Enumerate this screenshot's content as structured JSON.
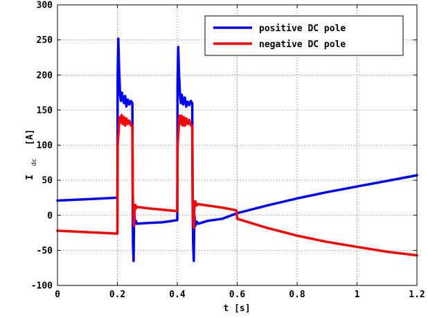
{
  "chart_data": {
    "type": "line",
    "xlabel": "t [s]",
    "ylabel_main": "I",
    "ylabel_sub": "dc",
    "ylabel_unit": "[A]",
    "xlim": [
      0,
      1.2
    ],
    "ylim": [
      -100,
      300
    ],
    "xticks": [
      0,
      0.2,
      0.4,
      0.6,
      0.8,
      1,
      1.2
    ],
    "xtick_labels": [
      "0",
      "0.2",
      "0.4",
      "0.6",
      "0.8",
      "1",
      "1.2"
    ],
    "yticks": [
      -100,
      -50,
      0,
      50,
      100,
      150,
      200,
      250,
      300
    ],
    "ytick_labels": [
      "-100",
      "-50",
      "0",
      "50",
      "100",
      "150",
      "200",
      "250",
      "300"
    ],
    "grid": true,
    "legend_position": "top-right",
    "series": [
      {
        "name": "positive DC pole",
        "color": "#0000ff",
        "points": [
          [
            0.0,
            21
          ],
          [
            0.1,
            23
          ],
          [
            0.198,
            25
          ],
          [
            0.2,
            25
          ],
          [
            0.201,
            200
          ],
          [
            0.203,
            252
          ],
          [
            0.206,
            205
          ],
          [
            0.209,
            172
          ],
          [
            0.212,
            163
          ],
          [
            0.215,
            175
          ],
          [
            0.218,
            168
          ],
          [
            0.222,
            160
          ],
          [
            0.226,
            170
          ],
          [
            0.23,
            155
          ],
          [
            0.235,
            165
          ],
          [
            0.24,
            158
          ],
          [
            0.245,
            163
          ],
          [
            0.25,
            160
          ],
          [
            0.251,
            30
          ],
          [
            0.252,
            -40
          ],
          [
            0.254,
            -65
          ],
          [
            0.256,
            5
          ],
          [
            0.259,
            -12
          ],
          [
            0.262,
            -8
          ],
          [
            0.265,
            -12
          ],
          [
            0.3,
            -11
          ],
          [
            0.35,
            -10
          ],
          [
            0.398,
            -7
          ],
          [
            0.4,
            -7
          ],
          [
            0.401,
            190
          ],
          [
            0.403,
            240
          ],
          [
            0.406,
            200
          ],
          [
            0.409,
            172
          ],
          [
            0.412,
            160
          ],
          [
            0.415,
            172
          ],
          [
            0.42,
            158
          ],
          [
            0.425,
            168
          ],
          [
            0.43,
            155
          ],
          [
            0.435,
            162
          ],
          [
            0.44,
            157
          ],
          [
            0.445,
            163
          ],
          [
            0.45,
            160
          ],
          [
            0.451,
            20
          ],
          [
            0.453,
            -40
          ],
          [
            0.455,
            -65
          ],
          [
            0.457,
            0
          ],
          [
            0.46,
            -15
          ],
          [
            0.465,
            -9
          ],
          [
            0.47,
            -12
          ],
          [
            0.5,
            -8
          ],
          [
            0.55,
            -5
          ],
          [
            0.6,
            3
          ],
          [
            0.7,
            14
          ],
          [
            0.8,
            24
          ],
          [
            0.9,
            33
          ],
          [
            1.0,
            41
          ],
          [
            1.1,
            49
          ],
          [
            1.2,
            57
          ]
        ]
      },
      {
        "name": "negative DC pole",
        "color": "#ff0000",
        "points": [
          [
            0.0,
            -22
          ],
          [
            0.1,
            -24
          ],
          [
            0.198,
            -26
          ],
          [
            0.2,
            -26
          ],
          [
            0.201,
            100
          ],
          [
            0.204,
            118
          ],
          [
            0.207,
            140
          ],
          [
            0.21,
            132
          ],
          [
            0.214,
            143
          ],
          [
            0.218,
            130
          ],
          [
            0.222,
            140
          ],
          [
            0.226,
            128
          ],
          [
            0.23,
            138
          ],
          [
            0.235,
            130
          ],
          [
            0.24,
            135
          ],
          [
            0.245,
            128
          ],
          [
            0.25,
            128
          ],
          [
            0.251,
            40
          ],
          [
            0.253,
            0
          ],
          [
            0.255,
            -15
          ],
          [
            0.257,
            5
          ],
          [
            0.26,
            15
          ],
          [
            0.263,
            10
          ],
          [
            0.266,
            12
          ],
          [
            0.3,
            10
          ],
          [
            0.35,
            8
          ],
          [
            0.398,
            6
          ],
          [
            0.4,
            6
          ],
          [
            0.401,
            100
          ],
          [
            0.404,
            118
          ],
          [
            0.407,
            142
          ],
          [
            0.41,
            130
          ],
          [
            0.414,
            142
          ],
          [
            0.418,
            128
          ],
          [
            0.422,
            140
          ],
          [
            0.426,
            128
          ],
          [
            0.43,
            138
          ],
          [
            0.435,
            130
          ],
          [
            0.44,
            136
          ],
          [
            0.445,
            128
          ],
          [
            0.45,
            128
          ],
          [
            0.451,
            40
          ],
          [
            0.453,
            -10
          ],
          [
            0.455,
            -18
          ],
          [
            0.457,
            10
          ],
          [
            0.46,
            20
          ],
          [
            0.465,
            14
          ],
          [
            0.47,
            16
          ],
          [
            0.5,
            14
          ],
          [
            0.55,
            11
          ],
          [
            0.598,
            7
          ],
          [
            0.6,
            -5
          ],
          [
            0.7,
            -18
          ],
          [
            0.8,
            -29
          ],
          [
            0.9,
            -38
          ],
          [
            1.0,
            -45
          ],
          [
            1.1,
            -52
          ],
          [
            1.2,
            -57
          ]
        ]
      }
    ]
  }
}
